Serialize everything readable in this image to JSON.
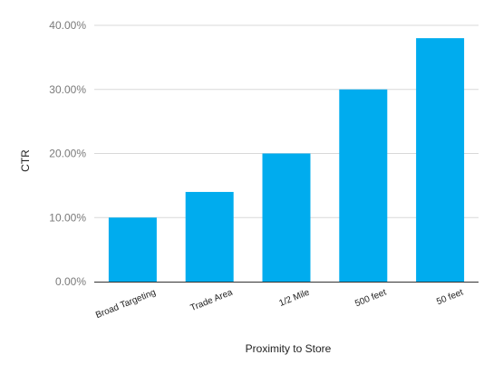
{
  "chart_data": {
    "type": "bar",
    "title": "",
    "xlabel": "Proximity to Store",
    "ylabel": "CTR",
    "categories": [
      "Broad Targeting",
      "Trade Area",
      "1/2 Mile",
      "500 feet",
      "50 feet"
    ],
    "series": [
      {
        "values": [
          0.1,
          0.14,
          0.2,
          0.3,
          0.38
        ],
        "color": "#00acee"
      }
    ],
    "ylim": [
      0,
      0.4
    ],
    "yticks": [
      0,
      0.1,
      0.2,
      0.3,
      0.4
    ],
    "ytick_labels": [
      "0.00%",
      "10.00%",
      "20.00%",
      "30.00%",
      "40.00%"
    ],
    "grid": true,
    "legend": "none"
  }
}
